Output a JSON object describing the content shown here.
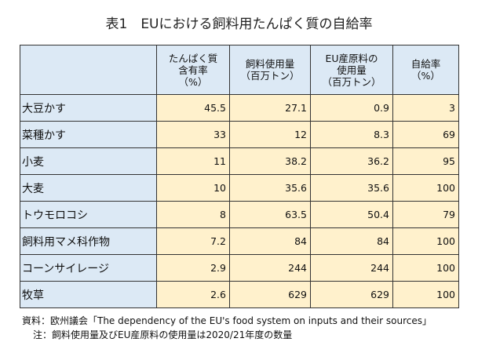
{
  "title": "表1　EUにおける飼料用たんぱく質の自給率",
  "headers": [
    "",
    "たんぱく質\n含有率\n（%）",
    "飼料使用量\n（百万トン）",
    "EU産原料の\n使用量\n（百万トン）",
    "自給率\n（%）"
  ],
  "rows": [
    [
      "大豆かす",
      "45.5",
      "27.1",
      "0.9",
      "3"
    ],
    [
      "菜種かす",
      "33",
      "12",
      "8.3",
      "69"
    ],
    [
      "小麦",
      "11",
      "38.2",
      "36.2",
      "95"
    ],
    [
      "大麦",
      "10",
      "35.6",
      "35.6",
      "100"
    ],
    [
      "トウモロコシ",
      "8",
      "63.5",
      "50.4",
      "79"
    ],
    [
      "飼料用マメ科作物",
      "7.2",
      "84",
      "84",
      "100"
    ],
    [
      "コーンサイレージ",
      "2.9",
      "244",
      "244",
      "100"
    ],
    [
      "牧草",
      "2.6",
      "629",
      "629",
      "100"
    ]
  ],
  "source": "資料：欧州議会「The dependency of the EU's food system on inputs and their sources」",
  "note": "注：飼料使用量及びEU産原料の使用量は2020/21年度の数量"
}
